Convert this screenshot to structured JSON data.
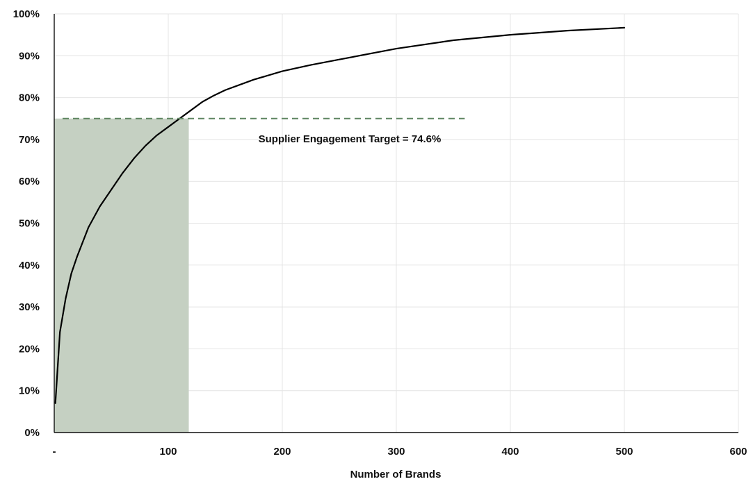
{
  "chart_data": {
    "type": "line",
    "title": "",
    "xlabel": "Number of Brands",
    "ylabel": "",
    "xlim": [
      0,
      600
    ],
    "ylim": [
      0,
      1
    ],
    "x_ticks": [
      {
        "value": 0,
        "label": "-"
      },
      {
        "value": 100,
        "label": "100"
      },
      {
        "value": 200,
        "label": "200"
      },
      {
        "value": 300,
        "label": "300"
      },
      {
        "value": 400,
        "label": "400"
      },
      {
        "value": 500,
        "label": "500"
      },
      {
        "value": 600,
        "label": "600"
      }
    ],
    "y_ticks": [
      {
        "value": 0,
        "label": "0%"
      },
      {
        "value": 0.1,
        "label": "10%"
      },
      {
        "value": 0.2,
        "label": "20%"
      },
      {
        "value": 0.3,
        "label": "30%"
      },
      {
        "value": 0.4,
        "label": "40%"
      },
      {
        "value": 0.5,
        "label": "50%"
      },
      {
        "value": 0.6,
        "label": "60%"
      },
      {
        "value": 0.7,
        "label": "70%"
      },
      {
        "value": 0.8,
        "label": "80%"
      },
      {
        "value": 0.9,
        "label": "90%"
      },
      {
        "value": 1.0,
        "label": "100%"
      }
    ],
    "grid": true,
    "series": [
      {
        "color": "#000000",
        "x": [
          1,
          5,
          10,
          15,
          20,
          30,
          40,
          50,
          60,
          70,
          80,
          90,
          100,
          110,
          120,
          130,
          140,
          150,
          175,
          200,
          225,
          250,
          300,
          350,
          400,
          450,
          500
        ],
        "y": [
          0.07,
          0.24,
          0.32,
          0.38,
          0.42,
          0.49,
          0.54,
          0.58,
          0.62,
          0.655,
          0.685,
          0.71,
          0.73,
          0.75,
          0.77,
          0.79,
          0.805,
          0.818,
          0.843,
          0.863,
          0.878,
          0.891,
          0.917,
          0.937,
          0.95,
          0.96,
          0.967
        ]
      }
    ],
    "target": {
      "value": 0.75,
      "x_end": 360,
      "color": "#5e8560",
      "label": "Supplier Engagement Target = 74.6%"
    },
    "shaded_region": {
      "x_start": 0,
      "x_end": 118,
      "y_top": 0.75,
      "color": "#c5d0c2"
    }
  }
}
